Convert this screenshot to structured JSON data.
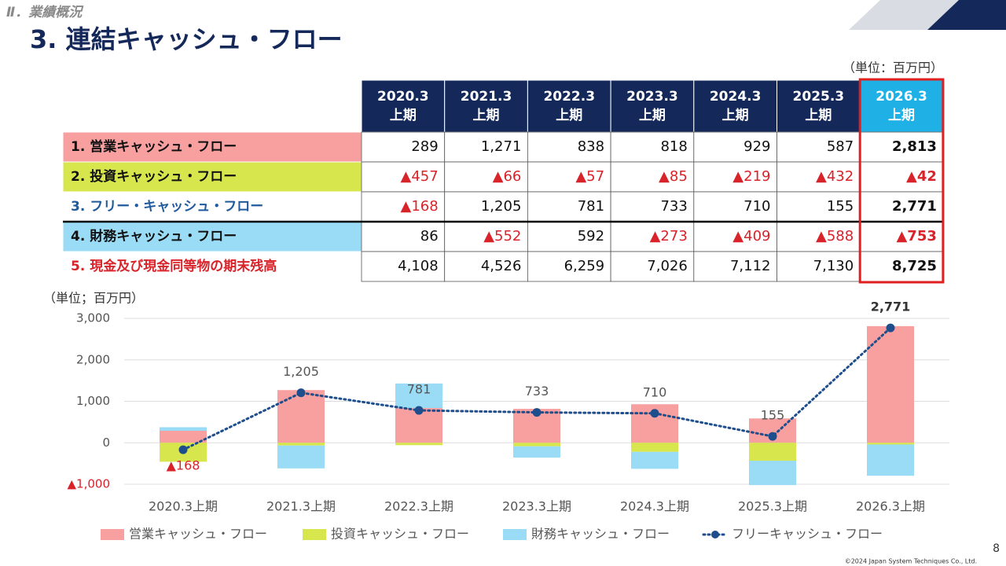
{
  "header": {
    "section": "Ⅱ．業績概況",
    "title": "3. 連結キャッシュ・フロー",
    "unit": "（単位：百万円）"
  },
  "table": {
    "columns": [
      {
        "period": "2020.3",
        "half": "上期"
      },
      {
        "period": "2021.3",
        "half": "上期"
      },
      {
        "period": "2022.3",
        "half": "上期"
      },
      {
        "period": "2023.3",
        "half": "上期"
      },
      {
        "period": "2024.3",
        "half": "上期"
      },
      {
        "period": "2025.3",
        "half": "上期"
      },
      {
        "period": "2026.3",
        "half": "上期"
      }
    ],
    "rows": [
      {
        "label": "1.  営業キャッシュ・フロー",
        "cells": [
          "289",
          "1,271",
          "838",
          "818",
          "929",
          "587",
          "2,813"
        ]
      },
      {
        "label": "2.  投資キャッシュ・フロー",
        "cells": [
          "▲457",
          "▲66",
          "▲57",
          "▲85",
          "▲219",
          "▲432",
          "▲42"
        ]
      },
      {
        "label": "3.  フリー・キャッシュ・フロー",
        "cells": [
          "▲168",
          "1,205",
          "781",
          "733",
          "710",
          "155",
          "2,771"
        ]
      },
      {
        "label": "4.  財務キャッシュ・フロー",
        "cells": [
          "86",
          "▲552",
          "592",
          "▲273",
          "▲409",
          "▲588",
          "▲753"
        ]
      },
      {
        "label": "5.  現金及び現金同等物の期末残高",
        "cells": [
          "4,108",
          "4,526",
          "6,259",
          "7,026",
          "7,112",
          "7,130",
          "8,725"
        ]
      }
    ]
  },
  "chart_data": {
    "type": "bar",
    "y_label": "（単位；百万円）",
    "categories": [
      "2020.3上期",
      "2021.3上期",
      "2022.3上期",
      "2023.3上期",
      "2024.3上期",
      "2025.3上期",
      "2026.3上期"
    ],
    "series": [
      {
        "name": "営業キャッシュ・フロー",
        "color": "#f8a0a0",
        "values": [
          289,
          1271,
          838,
          818,
          929,
          587,
          2813
        ]
      },
      {
        "name": "投資キャッシュ・フロー",
        "color": "#d6e64c",
        "values": [
          -457,
          -66,
          -57,
          -85,
          -219,
          -432,
          -42
        ]
      },
      {
        "name": "財務キャッシュ・フロー",
        "color": "#9adcf6",
        "values": [
          86,
          -552,
          592,
          -273,
          -409,
          -588,
          -753
        ]
      },
      {
        "name": "フリーキャッシュ・フロー",
        "type": "line",
        "color": "#1f4e8c",
        "values": [
          -168,
          1205,
          781,
          733,
          710,
          155,
          2771
        ],
        "value_labels": [
          "▲168",
          "1,205",
          "781",
          "733",
          "710",
          "155",
          "2,771"
        ]
      }
    ],
    "ylim": [
      -1000,
      3000
    ],
    "yticks": [
      {
        "value": -1000,
        "label": "▲1,000"
      },
      0,
      {
        "value": 1000,
        "label": "1,000"
      },
      {
        "value": 2000,
        "label": "2,000"
      },
      {
        "value": 3000,
        "label": "3,000"
      }
    ],
    "grid": true
  },
  "footer": {
    "page": "8",
    "copyright": "©2024 Japan System Techniques Co., Ltd."
  }
}
